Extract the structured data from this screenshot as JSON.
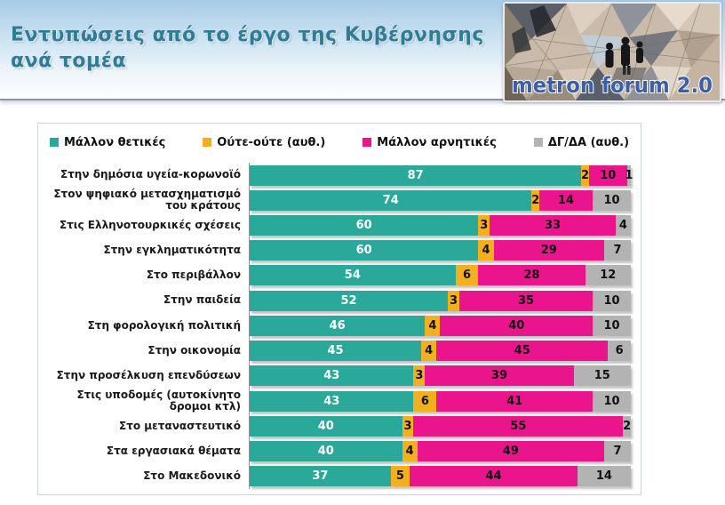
{
  "header": {
    "title_line1": "Εντυπώσεις από το έργο της Κυβέρνησης",
    "title_line2": "ανά τομέα",
    "logo_text": "metron forum 2.0"
  },
  "colors": {
    "positive": "#2aa89a",
    "neutral": "#f2b01e",
    "negative": "#ea158c",
    "dk_na": "#b3b3b3",
    "title": "#2e7d98",
    "logo_text_blue": "#3d5ea9"
  },
  "legend": [
    {
      "label": "Μάλλον θετικές",
      "color": "#2aa89a"
    },
    {
      "label": "Ούτε-ούτε  (αυθ.)",
      "color": "#f2b01e"
    },
    {
      "label": "Μάλλον αρνητικές",
      "color": "#ea158c"
    },
    {
      "label": "ΔΓ/ΔΑ (αυθ.)",
      "color": "#b3b3b3"
    }
  ],
  "chart_data": {
    "type": "bar",
    "orientation": "horizontal",
    "stacked": true,
    "units": "percent",
    "xlim": [
      0,
      100
    ],
    "grid": false,
    "legend_position": "top",
    "categories": [
      "Στην δημόσια υγεία-κορωνοϊό",
      "Στον ψηφιακό μετασχηματισμό του κράτους",
      "Στις Ελληνοτουρκικές σχέσεις",
      "Στην εγκληματικότητα",
      "Στο περιβάλλον",
      "Στην παιδεία",
      "Στη φορολογική πολιτική",
      "Στην οικονομία",
      "Στην προσέλκυση επενδύσεων",
      "Στις υποδομές (αυτοκίνητο δρομοι κτλ)",
      "Στο μεταναστευτικό",
      "Στα εργασιακά θέματα",
      "Στο Μακεδονικό"
    ],
    "series": [
      {
        "name": "Μάλλον θετικές",
        "color": "#2aa89a",
        "values": [
          87,
          74,
          60,
          60,
          54,
          52,
          46,
          45,
          43,
          43,
          40,
          40,
          37
        ]
      },
      {
        "name": "Ούτε-ούτε (αυθ.)",
        "color": "#f2b01e",
        "values": [
          2,
          2,
          3,
          4,
          6,
          3,
          4,
          4,
          3,
          6,
          3,
          4,
          5
        ]
      },
      {
        "name": "Μάλλον αρνητικές",
        "color": "#ea158c",
        "values": [
          10,
          14,
          33,
          29,
          28,
          35,
          40,
          45,
          39,
          41,
          55,
          49,
          44
        ]
      },
      {
        "name": "ΔΓ/ΔΑ (αυθ.)",
        "color": "#b3b3b3",
        "values": [
          1,
          10,
          4,
          7,
          12,
          10,
          10,
          6,
          15,
          10,
          2,
          7,
          14
        ]
      }
    ]
  }
}
